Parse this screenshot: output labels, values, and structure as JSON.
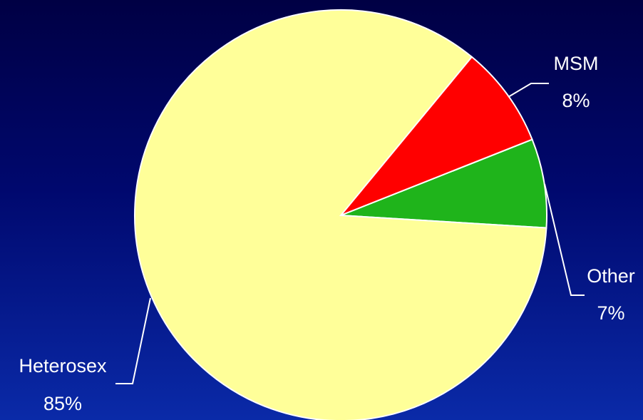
{
  "chart_data": {
    "type": "pie",
    "slices": [
      {
        "label": "Heterosex",
        "value_label": "85%",
        "value": 85,
        "color": "#ffff99"
      },
      {
        "label": "MSM",
        "value_label": "8%",
        "value": 8,
        "color": "#ff0000"
      },
      {
        "label": "Other",
        "value_label": "7%",
        "value": 7,
        "color": "#1fb41b"
      }
    ]
  },
  "colors": {
    "background_top": "#000044",
    "background_bottom": "#0a2aa8",
    "slice_border": "#ffffff",
    "label_text": "#ffffff"
  }
}
